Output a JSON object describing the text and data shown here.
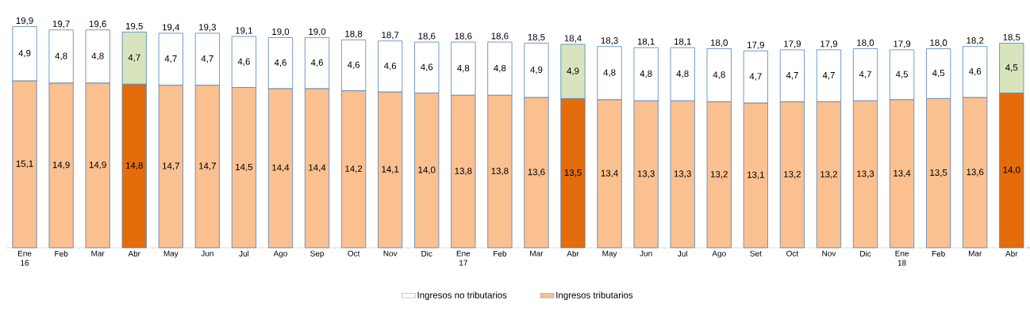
{
  "chart_data": {
    "type": "bar",
    "stacked": true,
    "categories": [
      "Ene 16",
      "Feb",
      "Mar",
      "Abr",
      "May",
      "Jun",
      "Jul",
      "Ago",
      "Sep",
      "Oct",
      "Nov",
      "Dic",
      "Ene 17",
      "Feb",
      "Mar",
      "Abr",
      "May",
      "Jun",
      "Jul",
      "Ago",
      "Set",
      "Oct",
      "Nov",
      "Dic",
      "Ene 18",
      "Feb",
      "Mar",
      "Abr"
    ],
    "series": [
      {
        "name": "Ingresos tributarios",
        "color": "#fac090",
        "colors": [
          "#fac090",
          "#fac090",
          "#fac090",
          "#e46c0a",
          "#fac090",
          "#fac090",
          "#fac090",
          "#fac090",
          "#fac090",
          "#fac090",
          "#fac090",
          "#fac090",
          "#fac090",
          "#fac090",
          "#fac090",
          "#e46c0a",
          "#fac090",
          "#fac090",
          "#fac090",
          "#fac090",
          "#fac090",
          "#fac090",
          "#fac090",
          "#fac090",
          "#fac090",
          "#fac090",
          "#fac090",
          "#e46c0a"
        ],
        "values": [
          15.1,
          14.9,
          14.9,
          14.8,
          14.7,
          14.7,
          14.5,
          14.4,
          14.4,
          14.2,
          14.1,
          14.0,
          13.8,
          13.8,
          13.6,
          13.5,
          13.4,
          13.3,
          13.3,
          13.2,
          13.1,
          13.2,
          13.2,
          13.3,
          13.4,
          13.5,
          13.6,
          14.0
        ],
        "value_labels": [
          "15,1",
          "14,9",
          "14,9",
          "14,8",
          "14,7",
          "14,7",
          "14,5",
          "14,4",
          "14,4",
          "14,2",
          "14,1",
          "14,0",
          "13,8",
          "13,8",
          "13,6",
          "13,5",
          "13,4",
          "13,3",
          "13,3",
          "13,2",
          "13,1",
          "13,2",
          "13,2",
          "13,3",
          "13,4",
          "13,5",
          "13,6",
          "14,0"
        ]
      },
      {
        "name": "Ingresos no tributarios",
        "color": "#ffffff",
        "colors": [
          "#ffffff",
          "#ffffff",
          "#ffffff",
          "#d7e4bd",
          "#ffffff",
          "#ffffff",
          "#ffffff",
          "#ffffff",
          "#ffffff",
          "#ffffff",
          "#ffffff",
          "#ffffff",
          "#ffffff",
          "#ffffff",
          "#ffffff",
          "#d7e4bd",
          "#ffffff",
          "#ffffff",
          "#ffffff",
          "#ffffff",
          "#ffffff",
          "#ffffff",
          "#ffffff",
          "#ffffff",
          "#ffffff",
          "#ffffff",
          "#ffffff",
          "#d7e4bd"
        ],
        "values": [
          4.9,
          4.8,
          4.8,
          4.7,
          4.7,
          4.7,
          4.6,
          4.6,
          4.6,
          4.6,
          4.6,
          4.6,
          4.8,
          4.8,
          4.9,
          4.9,
          4.8,
          4.8,
          4.8,
          4.8,
          4.7,
          4.7,
          4.7,
          4.7,
          4.5,
          4.5,
          4.6,
          4.5
        ],
        "value_labels": [
          "4,9",
          "4,8",
          "4,8",
          "4,7",
          "4,7",
          "4,7",
          "4,6",
          "4,6",
          "4,6",
          "4,6",
          "4,6",
          "4,6",
          "4,8",
          "4,8",
          "4,9",
          "4,9",
          "4,8",
          "4,8",
          "4,8",
          "4,8",
          "4,7",
          "4,7",
          "4,7",
          "4,7",
          "4,5",
          "4,5",
          "4,6",
          "4,5"
        ]
      }
    ],
    "totals": [
      "19,9",
      "19,7",
      "19,6",
      "19,5",
      "19,4",
      "19,3",
      "19,1",
      "19,0",
      "19,0",
      "18,8",
      "18,7",
      "18,6",
      "18,6",
      "18,6",
      "18,5",
      "18,4",
      "18,3",
      "18,1",
      "18,1",
      "18,0",
      "17,9",
      "17,9",
      "17,9",
      "18,0",
      "17,9",
      "18,0",
      "18,2",
      "18,5"
    ],
    "legend": "bottom"
  }
}
